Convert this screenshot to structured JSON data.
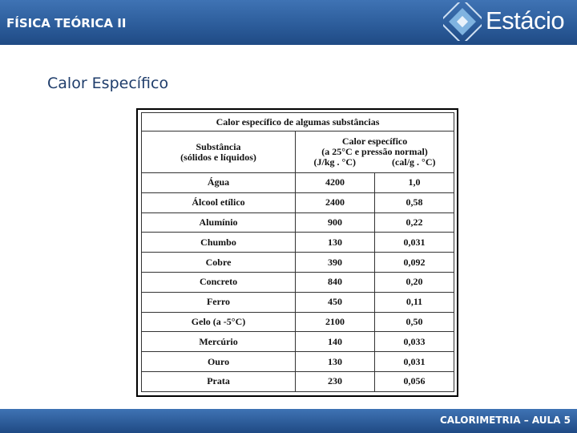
{
  "header": {
    "course": "FÍSICA TEÓRICA II",
    "logo": "Estácio"
  },
  "slide": {
    "title": "Calor Específico"
  },
  "table": {
    "caption": "Calor específico de algumas substâncias",
    "substance_header": [
      "Substância",
      "(sólidos e líquidos)"
    ],
    "heat_header": [
      "Calor específico",
      "(a 25°C e pressão normal)"
    ],
    "units": [
      "(J/kg . °C)",
      "(cal/g . °C)"
    ],
    "rows": [
      [
        "Água",
        "4200",
        "1,0"
      ],
      [
        "Álcool etílico",
        "2400",
        "0,58"
      ],
      [
        "Alumínio",
        "900",
        "0,22"
      ],
      [
        "Chumbo",
        "130",
        "0,031"
      ],
      [
        "Cobre",
        "390",
        "0,092"
      ],
      [
        "Concreto",
        "840",
        "0,20"
      ],
      [
        "Ferro",
        "450",
        "0,11"
      ],
      [
        "Gelo (a -5°C)",
        "2100",
        "0,50"
      ],
      [
        "Mercúrio",
        "140",
        "0,033"
      ],
      [
        "Ouro",
        "130",
        "0,031"
      ],
      [
        "Prata",
        "230",
        "0,056"
      ]
    ]
  },
  "footer": {
    "text": "CALORIMETRIA – AULA 5"
  }
}
